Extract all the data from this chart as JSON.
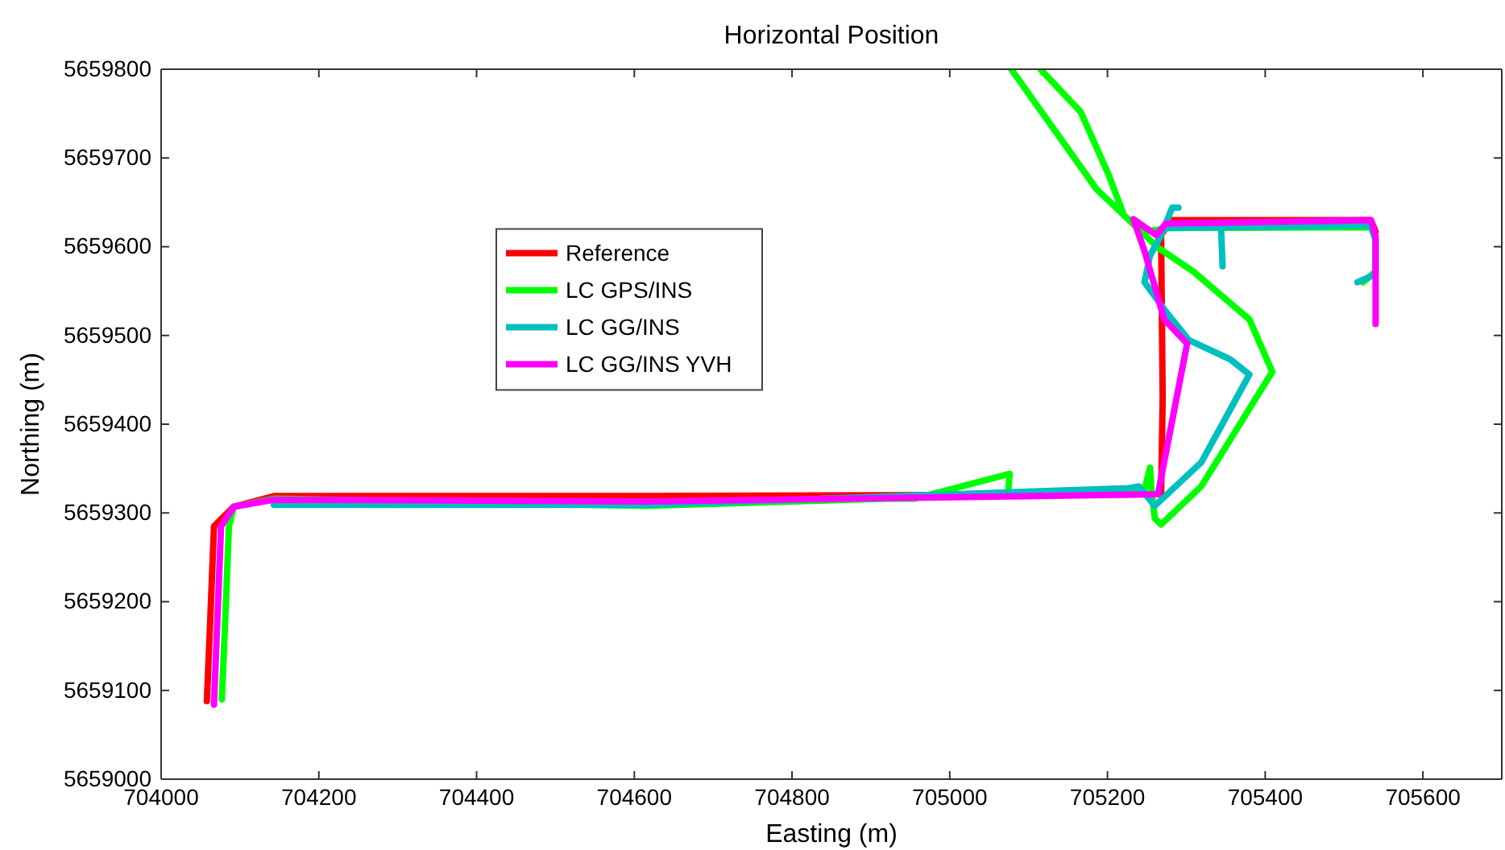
{
  "chart_data": {
    "type": "line",
    "title": "Horizontal Position",
    "xlabel": "Easting (m)",
    "ylabel": "Northing (m)",
    "xlim": [
      704000,
      705700
    ],
    "ylim": [
      5659000,
      5659800
    ],
    "xticks": [
      704000,
      704200,
      704400,
      704600,
      704800,
      705000,
      705200,
      705400,
      705600
    ],
    "yticks": [
      5659000,
      5659100,
      5659200,
      5659300,
      5659400,
      5659500,
      5659600,
      5659700,
      5659800
    ],
    "grid": false,
    "legend": "top left",
    "line_style": "solid",
    "marker": "none",
    "series": [
      {
        "name": "Reference",
        "color": "#ff0000",
        "x": [
          704058,
          704063,
          704067,
          704092,
          704143,
          704614,
          705268,
          705270,
          705268,
          705280,
          705534,
          705540
        ],
        "values": [
          5659088,
          5659195,
          5659285,
          5659307,
          5659319,
          5659319,
          5659321,
          5659429,
          5659613,
          5659630,
          5659630,
          5659617
        ]
      },
      {
        "name": "LC GPS/INS",
        "color": "#00ff00",
        "x": [
          704077,
          704082,
          704086,
          704092,
          704143,
          704614,
          704920,
          704955,
          705076,
          705074,
          705247,
          705254,
          705256,
          705260,
          705268,
          705319,
          705409,
          705380,
          705309,
          705264,
          705186,
          705078,
          null,
          705115,
          705166,
          705202,
          705221,
          705247,
          705278,
          705534,
          705540,
          705540,
          705524
        ],
        "values": [
          5659090,
          5659195,
          5659285,
          5659307,
          5659316,
          5659308,
          5659316,
          5659316,
          5659344,
          5659323,
          5659326,
          5659351,
          5659323,
          5659294,
          5659287,
          5659330,
          5659459,
          5659518,
          5659572,
          5659599,
          5659665,
          5659800,
          null,
          5659800,
          5659752,
          5659680,
          5659635,
          5659617,
          5659621,
          5659622,
          5659608,
          5659572,
          5659560
        ]
      },
      {
        "name": "LC GG/INS",
        "color": "#00bfbf",
        "x": [
          704143,
          704614,
          705227,
          705240,
          705260,
          705319,
          705380,
          705356,
          705303,
          705274,
          705247,
          705254,
          705268,
          705282,
          705290,
          null,
          705272,
          705534,
          705540,
          705540,
          705517,
          null,
          705344,
          705346
        ],
        "values": [
          5659309,
          5659309,
          5659328,
          5659330,
          5659308,
          5659357,
          5659456,
          5659473,
          5659495,
          5659527,
          5659560,
          5659590,
          5659613,
          5659644,
          5659644,
          null,
          5659621,
          5659624,
          5659608,
          5659569,
          5659560,
          null,
          5659622,
          5659578
        ]
      },
      {
        "name": "LC GG/INS YVH",
        "color": "#ff00ff",
        "x": [
          704067,
          704072,
          704076,
          704092,
          704143,
          704614,
          705264,
          705301,
          705272,
          705262,
          705247,
          705233,
          705262,
          705274,
          705534,
          705540,
          705540
        ],
        "values": [
          5659084,
          5659195,
          5659285,
          5659307,
          5659315,
          5659313,
          5659321,
          5659491,
          5659518,
          5659549,
          5659595,
          5659631,
          5659613,
          5659626,
          5659630,
          5659612,
          5659513
        ]
      }
    ]
  }
}
